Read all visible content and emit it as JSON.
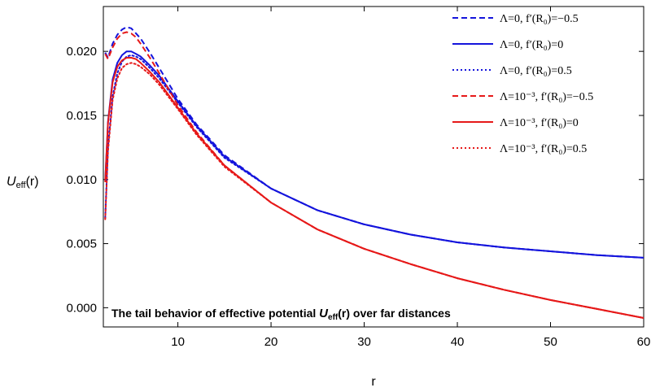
{
  "chart_data": {
    "type": "line",
    "title": "",
    "xlabel": "r",
    "ylabel": "U_eff(r)",
    "ylabel_main": "U",
    "ylabel_sub": "eff",
    "ylabel_tail": "(r)",
    "xlim": [
      2,
      60
    ],
    "ylim": [
      -0.0015,
      0.0235
    ],
    "x_ticks": [
      10,
      20,
      30,
      40,
      50,
      60
    ],
    "x_tick_labels": [
      "10",
      "20",
      "30",
      "40",
      "50",
      "60"
    ],
    "y_ticks": [
      0.0,
      0.005,
      0.01,
      0.015,
      0.02
    ],
    "y_tick_labels": [
      "0.000",
      "0.005",
      "0.010",
      "0.015",
      "0.020"
    ],
    "grid": false,
    "legend_position": "top-right",
    "annotation": {
      "prefix": "The tail behavior of effective potential ",
      "symbol": "U",
      "sub": "eff",
      "suffix": "(r) over far distances"
    },
    "colors": {
      "blue": "#1414dc",
      "red": "#e61919"
    },
    "series": [
      {
        "name": "Λ=0, f′(R0)=−0.5",
        "legend_text": "Λ=0, f′(R₀)=−0.5",
        "color": "#1414dc",
        "dash": "dashed",
        "x": [
          2.2,
          2.5,
          3.0,
          3.5,
          4.0,
          4.5,
          5.0,
          5.5,
          6,
          7,
          8,
          10,
          12,
          15,
          20,
          25,
          30,
          35,
          40,
          45,
          50,
          55,
          60
        ],
        "y": [
          0.0199,
          0.0195,
          0.0206,
          0.0213,
          0.0217,
          0.0219,
          0.0218,
          0.0214,
          0.021,
          0.0199,
          0.0187,
          0.0163,
          0.0143,
          0.0119,
          0.0093,
          0.0076,
          0.0065,
          0.0057,
          0.0051,
          0.0047,
          0.0044,
          0.0041,
          0.0039
        ]
      },
      {
        "name": "Λ=0, f′(R0)=0",
        "legend_text": "Λ=0, f′(R₀)=0",
        "color": "#1414dc",
        "dash": "solid",
        "x": [
          2.2,
          2.5,
          3.0,
          3.5,
          4.0,
          4.5,
          5.0,
          5.5,
          6,
          7,
          8,
          10,
          12,
          15,
          20,
          25,
          30,
          35,
          40,
          45,
          50,
          55,
          60
        ],
        "y": [
          0.0099,
          0.0145,
          0.0178,
          0.0191,
          0.0197,
          0.02,
          0.02,
          0.0198,
          0.0196,
          0.0189,
          0.0181,
          0.0161,
          0.0142,
          0.0118,
          0.0093,
          0.0076,
          0.0065,
          0.0057,
          0.0051,
          0.0047,
          0.0044,
          0.0041,
          0.0039
        ]
      },
      {
        "name": "Λ=0, f′(R0)=0.5",
        "legend_text": "Λ=0, f′(R₀)=0.5",
        "color": "#1414dc",
        "dash": "dotted",
        "x": [
          2.2,
          2.5,
          3.0,
          3.5,
          4.0,
          4.5,
          5.0,
          5.5,
          6,
          7,
          8,
          10,
          12,
          15,
          20,
          25,
          30,
          35,
          40,
          45,
          50,
          55,
          60
        ],
        "y": [
          0.007,
          0.0125,
          0.0165,
          0.0183,
          0.0192,
          0.0196,
          0.0197,
          0.0196,
          0.0194,
          0.0187,
          0.0179,
          0.016,
          0.0141,
          0.0117,
          0.0093,
          0.0076,
          0.0065,
          0.0057,
          0.0051,
          0.0047,
          0.0044,
          0.0041,
          0.0039
        ]
      },
      {
        "name": "Λ=10⁻³, f′(R0)=−0.5",
        "legend_text": "Λ=10⁻³, f′(R₀)=−0.5",
        "color": "#e61919",
        "dash": "dashed",
        "x": [
          2.2,
          2.5,
          3.0,
          3.5,
          4.0,
          4.5,
          5.0,
          5.5,
          6,
          7,
          8,
          10,
          12,
          15,
          20,
          25,
          30,
          35,
          40,
          45,
          50,
          55,
          60
        ],
        "y": [
          0.0198,
          0.0194,
          0.0203,
          0.021,
          0.0214,
          0.0215,
          0.0214,
          0.0211,
          0.0206,
          0.0195,
          0.0183,
          0.0158,
          0.0137,
          0.0111,
          0.0082,
          0.0061,
          0.0046,
          0.0034,
          0.0023,
          0.0014,
          0.0006,
          -0.0001,
          -0.0008
        ]
      },
      {
        "name": "Λ=10⁻³, f′(R0)=0",
        "legend_text": "Λ=10⁻³, f′(R₀)=0",
        "color": "#e61919",
        "dash": "solid",
        "x": [
          2.2,
          2.5,
          3.0,
          3.5,
          4.0,
          4.5,
          5.0,
          5.5,
          6,
          7,
          8,
          10,
          12,
          15,
          20,
          25,
          30,
          35,
          40,
          45,
          50,
          55,
          60
        ],
        "y": [
          0.0098,
          0.0144,
          0.0176,
          0.0188,
          0.0193,
          0.0195,
          0.0195,
          0.0194,
          0.0191,
          0.0184,
          0.0176,
          0.0156,
          0.0136,
          0.0111,
          0.0082,
          0.0061,
          0.0046,
          0.0034,
          0.0023,
          0.0014,
          0.0006,
          -0.0001,
          -0.0008
        ]
      },
      {
        "name": "Λ=10⁻³, f′(R0)=0.5",
        "legend_text": "Λ=10⁻³, f′(R₀)=0.5",
        "color": "#e61919",
        "dash": "dotted",
        "x": [
          2.2,
          2.5,
          3.0,
          3.5,
          4.0,
          4.5,
          5.0,
          5.5,
          6,
          7,
          8,
          10,
          12,
          15,
          20,
          25,
          30,
          35,
          40,
          45,
          50,
          55,
          60
        ],
        "y": [
          0.0069,
          0.0122,
          0.0162,
          0.0179,
          0.0187,
          0.019,
          0.0191,
          0.019,
          0.0188,
          0.0182,
          0.0174,
          0.0155,
          0.0135,
          0.011,
          0.0082,
          0.0061,
          0.0046,
          0.0034,
          0.0023,
          0.0014,
          0.0006,
          -0.0001,
          -0.0008
        ]
      }
    ]
  }
}
